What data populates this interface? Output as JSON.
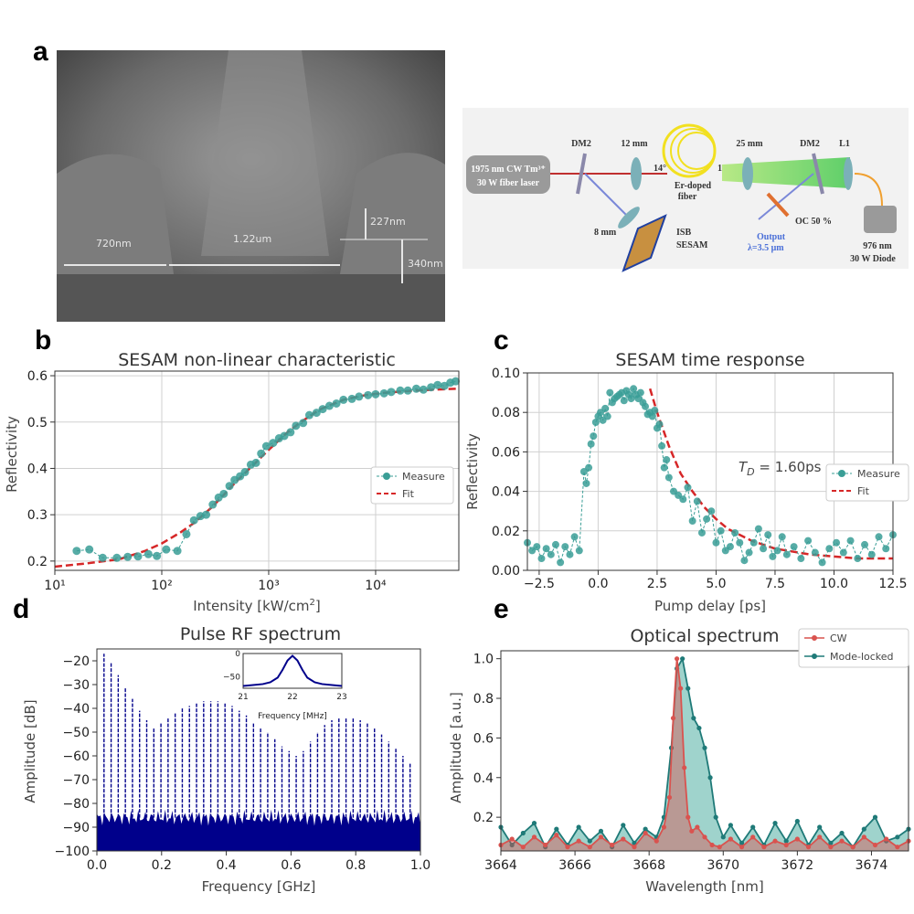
{
  "panel_labels": {
    "a": "a",
    "b": "b",
    "c": "c",
    "d": "d",
    "e": "e"
  },
  "sem_image": {
    "labels": [
      "720nm",
      "1.22um",
      "227nm",
      "340nm"
    ]
  },
  "setup_diagram": {
    "laser": [
      "1975 nm CW Tm³⁺",
      "30 W fiber laser"
    ],
    "dm2_left": "DM2",
    "lens_12": "12 mm",
    "lens_25": "25 mm",
    "dm2_right": "DM2",
    "l1": "L1",
    "angle_left": "14°",
    "angle_right": "14°",
    "fiber": [
      "Er-doped",
      "fiber"
    ],
    "lens_8": "8 mm",
    "sesam": [
      "ISB",
      "SESAM"
    ],
    "output": [
      "Output",
      "λ=3.5 μm"
    ],
    "oc": "OC 50 %",
    "diode": [
      "976 nm",
      "30 W Diode"
    ]
  },
  "chart_data": [
    {
      "id": "b",
      "type": "scatter",
      "title": "SESAM non-linear characteristic",
      "xlabel": "Intensity [kW/cm²]",
      "ylabel": "Reflectivity",
      "xscale": "log",
      "xlim": [
        10,
        60000
      ],
      "ylim": [
        0.18,
        0.61
      ],
      "xticks": [
        "10¹",
        "10²",
        "10³",
        "10⁴"
      ],
      "yticks": [
        "0.2",
        "0.3",
        "0.4",
        "0.5",
        "0.6"
      ],
      "grid": true,
      "legend": {
        "position": "right-middle",
        "entries": [
          "Measure",
          "Fit"
        ]
      },
      "series": [
        {
          "name": "Measure",
          "style": "markers-dashed",
          "color": "#3a9e96",
          "x": [
            16,
            21,
            28,
            38,
            48,
            60,
            75,
            90,
            110,
            140,
            170,
            200,
            230,
            260,
            300,
            340,
            380,
            430,
            480,
            540,
            600,
            680,
            760,
            850,
            950,
            1100,
            1250,
            1400,
            1600,
            1800,
            2100,
            2400,
            2800,
            3200,
            3700,
            4300,
            5000,
            6000,
            7000,
            8500,
            10000,
            12000,
            14000,
            17000,
            20000,
            24000,
            28000,
            33000,
            38000,
            44000,
            50000,
            56000
          ],
          "y": [
            0.222,
            0.225,
            0.207,
            0.207,
            0.209,
            0.21,
            0.215,
            0.211,
            0.225,
            0.222,
            0.258,
            0.288,
            0.297,
            0.3,
            0.322,
            0.337,
            0.345,
            0.362,
            0.375,
            0.383,
            0.392,
            0.408,
            0.412,
            0.432,
            0.448,
            0.455,
            0.465,
            0.47,
            0.478,
            0.492,
            0.498,
            0.515,
            0.52,
            0.528,
            0.535,
            0.54,
            0.548,
            0.55,
            0.555,
            0.558,
            0.56,
            0.562,
            0.565,
            0.568,
            0.568,
            0.572,
            0.57,
            0.575,
            0.58,
            0.578,
            0.585,
            0.588
          ]
        },
        {
          "name": "Fit",
          "style": "dashed",
          "color": "#d62728",
          "x": [
            10,
            20,
            40,
            70,
            100,
            150,
            200,
            300,
            500,
            700,
            1000,
            1500,
            2000,
            3000,
            5000,
            8000,
            12000,
            20000,
            35000,
            60000
          ],
          "y": [
            0.188,
            0.195,
            0.204,
            0.222,
            0.238,
            0.262,
            0.282,
            0.318,
            0.372,
            0.405,
            0.44,
            0.478,
            0.5,
            0.527,
            0.548,
            0.558,
            0.563,
            0.567,
            0.57,
            0.572
          ]
        }
      ]
    },
    {
      "id": "c",
      "type": "scatter",
      "title": "SESAM time response",
      "xlabel": "Pump delay [ps]",
      "ylabel": "Reflectivity",
      "xlim": [
        -3,
        12.5
      ],
      "ylim": [
        0,
        0.1
      ],
      "xticks": [
        "−2.5",
        "0.0",
        "2.5",
        "5.0",
        "7.5",
        "10.0",
        "12.5"
      ],
      "yticks": [
        "0.00",
        "0.02",
        "0.04",
        "0.06",
        "0.08",
        "0.10"
      ],
      "grid": true,
      "annotation": "T_D = 1.60ps",
      "annotation_main": "T",
      "annotation_sub": "D",
      "annotation_rest": " = 1.60ps",
      "legend": {
        "position": "right-middle",
        "entries": [
          "Measure",
          "Fit"
        ]
      },
      "series": [
        {
          "name": "Measure",
          "style": "markers-dashed",
          "color": "#3a9e96",
          "x": [
            -3.0,
            -2.8,
            -2.6,
            -2.4,
            -2.2,
            -2.0,
            -1.8,
            -1.6,
            -1.4,
            -1.2,
            -1.0,
            -0.8,
            -0.6,
            -0.5,
            -0.4,
            -0.3,
            -0.2,
            -0.1,
            0.0,
            0.1,
            0.2,
            0.3,
            0.4,
            0.5,
            0.6,
            0.7,
            0.8,
            0.9,
            1.0,
            1.1,
            1.2,
            1.3,
            1.4,
            1.5,
            1.6,
            1.7,
            1.8,
            1.9,
            2.0,
            2.1,
            2.2,
            2.3,
            2.4,
            2.5,
            2.6,
            2.7,
            2.8,
            2.9,
            3.0,
            3.2,
            3.4,
            3.6,
            3.8,
            4.0,
            4.2,
            4.4,
            4.6,
            4.8,
            5.0,
            5.2,
            5.4,
            5.6,
            5.8,
            6.0,
            6.2,
            6.4,
            6.6,
            6.8,
            7.0,
            7.2,
            7.4,
            7.6,
            7.8,
            8.0,
            8.3,
            8.6,
            8.9,
            9.2,
            9.5,
            9.8,
            10.1,
            10.4,
            10.7,
            11.0,
            11.3,
            11.6,
            11.9,
            12.2,
            12.5
          ],
          "y": [
            0.014,
            0.01,
            0.012,
            0.006,
            0.011,
            0.008,
            0.013,
            0.004,
            0.012,
            0.008,
            0.017,
            0.01,
            0.05,
            0.044,
            0.052,
            0.064,
            0.068,
            0.075,
            0.078,
            0.08,
            0.076,
            0.082,
            0.078,
            0.09,
            0.085,
            0.087,
            0.088,
            0.089,
            0.09,
            0.086,
            0.091,
            0.089,
            0.087,
            0.092,
            0.089,
            0.087,
            0.09,
            0.085,
            0.083,
            0.079,
            0.08,
            0.078,
            0.081,
            0.072,
            0.074,
            0.063,
            0.052,
            0.056,
            0.047,
            0.04,
            0.038,
            0.036,
            0.042,
            0.025,
            0.035,
            0.019,
            0.026,
            0.03,
            0.014,
            0.02,
            0.01,
            0.012,
            0.019,
            0.014,
            0.005,
            0.009,
            0.014,
            0.021,
            0.011,
            0.018,
            0.007,
            0.01,
            0.017,
            0.008,
            0.012,
            0.006,
            0.015,
            0.009,
            0.004,
            0.011,
            0.014,
            0.009,
            0.015,
            0.006,
            0.013,
            0.008,
            0.017,
            0.011,
            0.018
          ]
        },
        {
          "name": "Fit",
          "style": "dashed",
          "color": "#d62728",
          "x": [
            2.2,
            2.5,
            3.0,
            3.5,
            4.0,
            4.5,
            5.0,
            5.5,
            6.0,
            6.5,
            7.0,
            7.5,
            8.0,
            9.0,
            10.0,
            11.0,
            12.5
          ],
          "y": [
            0.092,
            0.08,
            0.063,
            0.049,
            0.04,
            0.032,
            0.026,
            0.021,
            0.018,
            0.015,
            0.013,
            0.011,
            0.01,
            0.008,
            0.007,
            0.006,
            0.006
          ]
        }
      ]
    },
    {
      "id": "d",
      "type": "line",
      "title": "Pulse RF spectrum",
      "xlabel": "Frequency [GHz]",
      "ylabel": "Amplitude [dB]",
      "xlim": [
        0,
        1
      ],
      "ylim": [
        -100,
        -15
      ],
      "xticks": [
        "0.0",
        "0.2",
        "0.4",
        "0.6",
        "0.8",
        "1.0"
      ],
      "yticks": [
        "−20",
        "−30",
        "−40",
        "−50",
        "−60",
        "−70",
        "−80",
        "−90",
        "−100"
      ],
      "grid": false,
      "noise_floor_db": -86,
      "line_spacing_ghz": 0.022,
      "series": [
        {
          "name": "RF peaks",
          "color": "#00008b",
          "x": [
            0.022,
            0.044,
            0.066,
            0.088,
            0.11,
            0.132,
            0.154,
            0.176,
            0.198,
            0.22,
            0.242,
            0.264,
            0.286,
            0.308,
            0.33,
            0.352,
            0.374,
            0.396,
            0.418,
            0.44,
            0.462,
            0.484,
            0.506,
            0.528,
            0.55,
            0.572,
            0.594,
            0.616,
            0.638,
            0.66,
            0.682,
            0.704,
            0.726,
            0.748,
            0.77,
            0.792,
            0.814,
            0.836,
            0.858,
            0.88,
            0.902,
            0.924,
            0.946,
            0.968
          ],
          "y": [
            -17,
            -21,
            -26,
            -31,
            -36,
            -41,
            -45,
            -48,
            -46,
            -44,
            -42,
            -40,
            -39,
            -38,
            -37,
            -37,
            -37,
            -38,
            -39,
            -41,
            -43,
            -46,
            -48,
            -50,
            -53,
            -56,
            -58,
            -60,
            -58,
            -54,
            -50,
            -47,
            -45,
            -44,
            -44,
            -44,
            -45,
            -46,
            -48,
            -51,
            -54,
            -57,
            -60,
            -63
          ]
        }
      ],
      "inset": {
        "xlabel": "Frequency [MHz]",
        "xlim": [
          21,
          23
        ],
        "ylim": [
          -75,
          0
        ],
        "xticks": [
          "21",
          "22",
          "23"
        ],
        "yticks": [
          "0",
          "−50"
        ],
        "x": [
          21.0,
          21.2,
          21.4,
          21.55,
          21.7,
          21.8,
          21.9,
          22.0,
          22.1,
          22.2,
          22.3,
          22.45,
          22.6,
          22.8,
          23.0
        ],
        "y": [
          -70,
          -68,
          -66,
          -62,
          -52,
          -35,
          -15,
          -5,
          -15,
          -35,
          -52,
          -62,
          -66,
          -68,
          -70
        ]
      }
    },
    {
      "id": "e",
      "type": "area",
      "title": "Optical spectrum",
      "xlabel": "Wavelength [nm]",
      "ylabel": "Amplitude [a.u.]",
      "xlim": [
        3664,
        3675
      ],
      "ylim": [
        0.03,
        1.04
      ],
      "xticks": [
        "3664",
        "3666",
        "3668",
        "3670",
        "3672",
        "3674"
      ],
      "yticks": [
        "0.2",
        "0.4",
        "0.6",
        "0.8",
        "1.0"
      ],
      "grid": false,
      "legend": {
        "position": "top-right",
        "entries": [
          "CW",
          "Mode-locked"
        ]
      },
      "series": [
        {
          "name": "CW",
          "color": "#d9534f",
          "x": [
            3664.0,
            3664.3,
            3664.6,
            3664.9,
            3665.2,
            3665.5,
            3665.8,
            3666.1,
            3666.4,
            3666.7,
            3667.0,
            3667.3,
            3667.6,
            3667.9,
            3668.2,
            3668.4,
            3668.55,
            3668.65,
            3668.75,
            3668.85,
            3668.95,
            3669.05,
            3669.15,
            3669.3,
            3669.5,
            3669.7,
            3669.9,
            3670.2,
            3670.5,
            3670.8,
            3671.1,
            3671.4,
            3671.7,
            3672.0,
            3672.3,
            3672.6,
            3672.9,
            3673.2,
            3673.5,
            3673.8,
            3674.1,
            3674.4,
            3674.7,
            3675.0
          ],
          "y": [
            0.06,
            0.09,
            0.05,
            0.1,
            0.06,
            0.11,
            0.05,
            0.08,
            0.05,
            0.1,
            0.06,
            0.09,
            0.05,
            0.12,
            0.08,
            0.15,
            0.3,
            0.7,
            1.0,
            0.85,
            0.45,
            0.2,
            0.13,
            0.15,
            0.1,
            0.06,
            0.05,
            0.09,
            0.05,
            0.1,
            0.05,
            0.08,
            0.06,
            0.09,
            0.05,
            0.1,
            0.05,
            0.08,
            0.05,
            0.1,
            0.06,
            0.09,
            0.05,
            0.08
          ]
        },
        {
          "name": "Mode-locked",
          "color": "#1f7a78",
          "x": [
            3664.0,
            3664.3,
            3664.6,
            3664.9,
            3665.2,
            3665.5,
            3665.8,
            3666.1,
            3666.4,
            3666.7,
            3667.0,
            3667.3,
            3667.6,
            3667.9,
            3668.2,
            3668.4,
            3668.6,
            3668.75,
            3668.9,
            3669.05,
            3669.2,
            3669.35,
            3669.5,
            3669.65,
            3669.8,
            3670.0,
            3670.2,
            3670.5,
            3670.8,
            3671.1,
            3671.4,
            3671.7,
            3672.0,
            3672.3,
            3672.6,
            3672.9,
            3673.2,
            3673.5,
            3673.8,
            3674.1,
            3674.4,
            3674.7,
            3675.0
          ],
          "y": [
            0.15,
            0.06,
            0.12,
            0.17,
            0.05,
            0.14,
            0.06,
            0.15,
            0.08,
            0.13,
            0.05,
            0.16,
            0.07,
            0.14,
            0.1,
            0.2,
            0.55,
            0.95,
            1.0,
            0.85,
            0.7,
            0.65,
            0.55,
            0.4,
            0.2,
            0.1,
            0.16,
            0.07,
            0.15,
            0.06,
            0.17,
            0.08,
            0.18,
            0.06,
            0.15,
            0.07,
            0.12,
            0.05,
            0.14,
            0.2,
            0.08,
            0.1,
            0.14
          ]
        }
      ]
    }
  ]
}
